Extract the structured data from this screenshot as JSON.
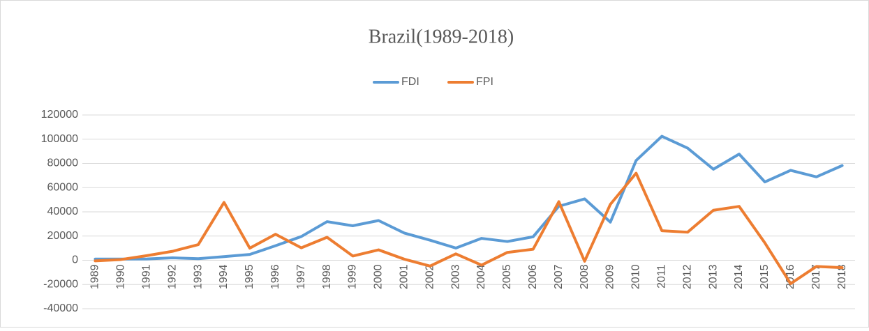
{
  "chart_data": {
    "type": "line",
    "title": "Brazil(1989-2018)",
    "categories": [
      "1989",
      "1990",
      "1991",
      "1992",
      "1993",
      "1994",
      "1995",
      "1996",
      "1997",
      "1998",
      "1999",
      "2000",
      "2001",
      "2002",
      "2003",
      "2004",
      "2005",
      "2006",
      "2007",
      "2008",
      "2009",
      "2010",
      "2011",
      "2012",
      "2013",
      "2014",
      "2015",
      "2016",
      "2017",
      "2018"
    ],
    "series": [
      {
        "name": "FDI",
        "color": "#5b9bd5",
        "values": [
          1000,
          1000,
          1100,
          2000,
          1300,
          3000,
          4800,
          12000,
          19600,
          31900,
          28500,
          32800,
          22500,
          16600,
          10100,
          18100,
          15500,
          19400,
          44600,
          50700,
          31500,
          82400,
          102400,
          92600,
          75200,
          87700,
          64700,
          74300,
          68900,
          78200
        ]
      },
      {
        "name": "FPI",
        "color": "#ed7d31",
        "values": [
          -500,
          600,
          3800,
          7400,
          12900,
          47800,
          10000,
          21500,
          10300,
          19000,
          3500,
          8600,
          900,
          -4800,
          5300,
          -4000,
          6500,
          9100,
          48400,
          -800,
          46200,
          71900,
          24400,
          23200,
          41300,
          44500,
          14300,
          -19300,
          -5100,
          -6100
        ]
      }
    ],
    "ylim": [
      -40000,
      120000
    ],
    "yticks": [
      -40000,
      -20000,
      0,
      20000,
      40000,
      60000,
      80000,
      100000,
      120000
    ],
    "grid": true,
    "legend": "top"
  }
}
